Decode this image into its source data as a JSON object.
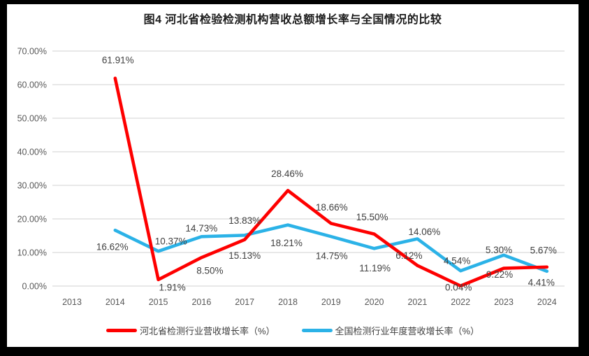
{
  "window": {
    "frame_color": "#000000",
    "background": "#ffffff"
  },
  "title": "图4  河北省检验检测机构营收总额增长率与全国情况的比较",
  "chart_data": {
    "type": "line",
    "title": "图4  河北省检验检测机构营收总额增长率与全国情况的比较",
    "categories": [
      "2013",
      "2014",
      "2015",
      "2016",
      "2017",
      "2018",
      "2019",
      "2020",
      "2021",
      "2022",
      "2023",
      "2024"
    ],
    "series": [
      {
        "name": "全国检测行业年度营收增长率（%）",
        "color": "#2bb2e7",
        "values": [
          null,
          16.62,
          10.37,
          14.73,
          15.13,
          18.21,
          14.75,
          11.19,
          14.06,
          4.54,
          9.22,
          4.41
        ],
        "labels": [
          null,
          "16.62%",
          "10.37%",
          "14.73%",
          "15.13%",
          "18.21%",
          "14.75%",
          "11.19%",
          "14.06%",
          "4.54%",
          "9.22%",
          "4.41%"
        ],
        "label_offsets": [
          null,
          [
            -4,
            24
          ],
          [
            18,
            -14
          ],
          [
            0,
            -12
          ],
          [
            0,
            29
          ],
          [
            -2,
            26
          ],
          [
            1,
            28
          ],
          [
            1,
            28
          ],
          [
            10,
            -10
          ],
          [
            -5,
            -14
          ],
          [
            -6,
            28
          ],
          [
            -8,
            16
          ]
        ]
      },
      {
        "name": "河北省检测行业营收增长率（%）",
        "color": "#fe0000",
        "values": [
          null,
          61.91,
          1.91,
          8.5,
          13.83,
          28.46,
          18.66,
          15.5,
          6.12,
          0.04,
          5.3,
          5.67
        ],
        "labels": [
          null,
          "61.91%",
          "1.91%",
          "8.50%",
          "13.83%",
          "28.46%",
          "18.66%",
          "15.50%",
          "6.12%",
          "0.04%",
          "5.30%",
          "5.67%"
        ],
        "label_offsets": [
          null,
          [
            4,
            -26
          ],
          [
            20,
            11
          ],
          [
            12,
            19
          ],
          [
            0,
            -27
          ],
          [
            -1,
            -24
          ],
          [
            1,
            -23
          ],
          [
            -3,
            -24
          ],
          [
            -12,
            -14
          ],
          [
            -3,
            2
          ],
          [
            -7,
            -26
          ],
          [
            -5,
            -24
          ]
        ]
      }
    ],
    "ylim": [
      0,
      70
    ],
    "y_tick_step": 10,
    "y_ticks": [
      "0.00%",
      "10.00%",
      "20.00%",
      "30.00%",
      "40.00%",
      "50.00%",
      "60.00%",
      "70.00%"
    ],
    "grid": true,
    "gridline_color": "#d9d9d9",
    "tick_label_color": "#595959",
    "data_label_color": "#404040",
    "legend_position": "bottom"
  },
  "legend": {
    "items": [
      {
        "label": "河北省检测行业营收增长率（%）",
        "color": "#fe0000"
      },
      {
        "label": "全国检测行业年度营收增长率（%）",
        "color": "#2bb2e7"
      }
    ]
  }
}
